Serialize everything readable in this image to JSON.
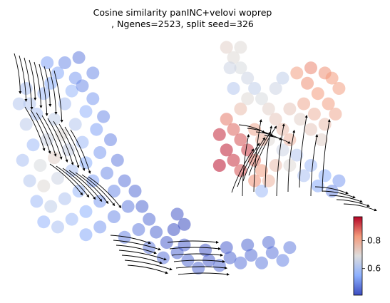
{
  "chart_data": {
    "type": "scatter",
    "subtype": "embedding with velocity streamlines",
    "title_line1": "Cosine similarity panINC+velovi woprep",
    "title_line2": ", Ngenes=2523, split seed=326",
    "xlabel": "",
    "ylabel": "",
    "axes_visible": false,
    "grid": false,
    "colormap": "coolwarm",
    "colorbar": {
      "placement": "bottom-right",
      "ticks": [
        0.6,
        0.8
      ],
      "tick_labels": [
        "0.6",
        "0.8"
      ],
      "range": [
        0.41,
        0.97
      ]
    },
    "clusters": [
      {
        "name": "",
        "points": [
          [
            0.08,
            0.7,
            0.6
          ],
          [
            0.06,
            0.74,
            0.62
          ],
          [
            0.1,
            0.78,
            0.58
          ],
          [
            0.12,
            0.82,
            0.55
          ],
          [
            0.05,
            0.66,
            0.63
          ],
          [
            0.13,
            0.68,
            0.64
          ],
          [
            0.16,
            0.74,
            0.6
          ],
          [
            0.18,
            0.79,
            0.57
          ],
          [
            0.14,
            0.86,
            0.54
          ],
          [
            0.19,
            0.84,
            0.52
          ],
          [
            0.07,
            0.58,
            0.58
          ],
          [
            0.11,
            0.6,
            0.66
          ],
          [
            0.15,
            0.62,
            0.7
          ],
          [
            0.19,
            0.66,
            0.62
          ],
          [
            0.22,
            0.71,
            0.56
          ],
          [
            0.24,
            0.76,
            0.52
          ],
          [
            0.21,
            0.81,
            0.5
          ],
          [
            0.04,
            0.52,
            0.6
          ],
          [
            0.09,
            0.5,
            0.68
          ],
          [
            0.13,
            0.53,
            0.72
          ],
          [
            0.17,
            0.56,
            0.65
          ],
          [
            0.21,
            0.59,
            0.58
          ],
          [
            0.25,
            0.64,
            0.53
          ],
          [
            0.27,
            0.69,
            0.5
          ],
          [
            0.06,
            0.44,
            0.62
          ],
          [
            0.1,
            0.42,
            0.7
          ],
          [
            0.14,
            0.45,
            0.66
          ],
          [
            0.18,
            0.48,
            0.6
          ],
          [
            0.22,
            0.51,
            0.55
          ],
          [
            0.26,
            0.55,
            0.52
          ],
          [
            0.29,
            0.6,
            0.49
          ],
          [
            0.08,
            0.36,
            0.58
          ],
          [
            0.12,
            0.34,
            0.64
          ],
          [
            0.16,
            0.37,
            0.61
          ],
          [
            0.2,
            0.4,
            0.57
          ],
          [
            0.24,
            0.44,
            0.53
          ],
          [
            0.28,
            0.47,
            0.5
          ],
          [
            0.31,
            0.52,
            0.48
          ],
          [
            0.1,
            0.28,
            0.56
          ],
          [
            0.14,
            0.26,
            0.6
          ],
          [
            0.18,
            0.29,
            0.58
          ],
          [
            0.22,
            0.32,
            0.55
          ],
          [
            0.26,
            0.36,
            0.52
          ],
          [
            0.3,
            0.4,
            0.5
          ],
          [
            0.33,
            0.44,
            0.47
          ],
          [
            0.36,
            0.4,
            0.46
          ],
          [
            0.34,
            0.34,
            0.48
          ],
          [
            0.3,
            0.3,
            0.5
          ],
          [
            0.26,
            0.26,
            0.52
          ],
          [
            0.22,
            0.23,
            0.54
          ],
          [
            0.38,
            0.34,
            0.45
          ],
          [
            0.4,
            0.29,
            0.46
          ],
          [
            0.37,
            0.25,
            0.48
          ],
          [
            0.33,
            0.22,
            0.49
          ],
          [
            0.42,
            0.24,
            0.45
          ],
          [
            0.45,
            0.2,
            0.44
          ],
          [
            0.48,
            0.16,
            0.45
          ],
          [
            0.44,
            0.14,
            0.47
          ],
          [
            0.4,
            0.18,
            0.48
          ],
          [
            0.51,
            0.13,
            0.46
          ],
          [
            0.54,
            0.1,
            0.45
          ],
          [
            0.57,
            0.13,
            0.44
          ],
          [
            0.6,
            0.11,
            0.46
          ],
          [
            0.63,
            0.14,
            0.45
          ],
          [
            0.66,
            0.12,
            0.47
          ],
          [
            0.69,
            0.15,
            0.46
          ],
          [
            0.72,
            0.12,
            0.48
          ],
          [
            0.75,
            0.16,
            0.47
          ],
          [
            0.78,
            0.13,
            0.49
          ],
          [
            0.62,
            0.18,
            0.44
          ],
          [
            0.68,
            0.19,
            0.45
          ],
          [
            0.74,
            0.2,
            0.46
          ],
          [
            0.8,
            0.18,
            0.48
          ],
          [
            0.56,
            0.17,
            0.43
          ],
          [
            0.5,
            0.19,
            0.44
          ],
          [
            0.47,
            0.25,
            0.42
          ],
          [
            0.5,
            0.27,
            0.41
          ],
          [
            0.48,
            0.31,
            0.43
          ],
          [
            0.16,
            0.9,
            0.5
          ],
          [
            0.2,
            0.92,
            0.48
          ],
          [
            0.11,
            0.9,
            0.53
          ],
          [
            0.05,
            0.8,
            0.6
          ],
          [
            0.03,
            0.74,
            0.62
          ],
          [
            0.24,
            0.86,
            0.5
          ]
        ]
      },
      {
        "name": "",
        "points": [
          [
            0.62,
            0.96,
            0.72
          ],
          [
            0.64,
            0.92,
            0.7
          ],
          [
            0.66,
            0.88,
            0.68
          ],
          [
            0.68,
            0.84,
            0.66
          ],
          [
            0.7,
            0.8,
            0.64
          ],
          [
            0.72,
            0.76,
            0.68
          ],
          [
            0.74,
            0.72,
            0.72
          ],
          [
            0.76,
            0.68,
            0.74
          ],
          [
            0.78,
            0.64,
            0.76
          ],
          [
            0.8,
            0.6,
            0.78
          ],
          [
            0.82,
            0.86,
            0.82
          ],
          [
            0.85,
            0.82,
            0.84
          ],
          [
            0.88,
            0.78,
            0.83
          ],
          [
            0.91,
            0.74,
            0.82
          ],
          [
            0.86,
            0.88,
            0.85
          ],
          [
            0.9,
            0.86,
            0.84
          ],
          [
            0.94,
            0.8,
            0.82
          ],
          [
            0.84,
            0.74,
            0.8
          ],
          [
            0.87,
            0.7,
            0.78
          ],
          [
            0.9,
            0.66,
            0.76
          ],
          [
            0.93,
            0.7,
            0.8
          ],
          [
            0.8,
            0.72,
            0.74
          ],
          [
            0.83,
            0.68,
            0.72
          ],
          [
            0.86,
            0.64,
            0.74
          ],
          [
            0.89,
            0.6,
            0.72
          ],
          [
            0.76,
            0.8,
            0.66
          ],
          [
            0.78,
            0.84,
            0.64
          ],
          [
            0.74,
            0.6,
            0.7
          ],
          [
            0.78,
            0.56,
            0.66
          ],
          [
            0.82,
            0.54,
            0.62
          ],
          [
            0.86,
            0.5,
            0.58
          ],
          [
            0.9,
            0.46,
            0.55
          ],
          [
            0.94,
            0.44,
            0.52
          ],
          [
            0.92,
            0.4,
            0.5
          ],
          [
            0.88,
            0.42,
            0.54
          ],
          [
            0.62,
            0.68,
            0.86
          ],
          [
            0.64,
            0.64,
            0.88
          ],
          [
            0.66,
            0.6,
            0.9
          ],
          [
            0.68,
            0.56,
            0.92
          ],
          [
            0.6,
            0.62,
            0.94
          ],
          [
            0.62,
            0.56,
            0.95
          ],
          [
            0.6,
            0.5,
            0.96
          ],
          [
            0.64,
            0.52,
            0.93
          ],
          [
            0.66,
            0.48,
            0.9
          ],
          [
            0.7,
            0.52,
            0.86
          ],
          [
            0.72,
            0.48,
            0.82
          ],
          [
            0.7,
            0.44,
            0.84
          ],
          [
            0.74,
            0.44,
            0.78
          ],
          [
            0.76,
            0.5,
            0.76
          ],
          [
            0.7,
            0.64,
            0.8
          ],
          [
            0.72,
            0.6,
            0.78
          ],
          [
            0.66,
            0.72,
            0.76
          ],
          [
            0.68,
            0.76,
            0.7
          ],
          [
            0.64,
            0.8,
            0.62
          ],
          [
            0.66,
            0.96,
            0.7
          ],
          [
            0.63,
            0.88,
            0.66
          ],
          [
            0.8,
            0.5,
            0.7
          ],
          [
            0.84,
            0.46,
            0.6
          ],
          [
            0.72,
            0.4,
            0.58
          ],
          [
            0.92,
            0.84,
            0.83
          ]
        ]
      }
    ]
  }
}
